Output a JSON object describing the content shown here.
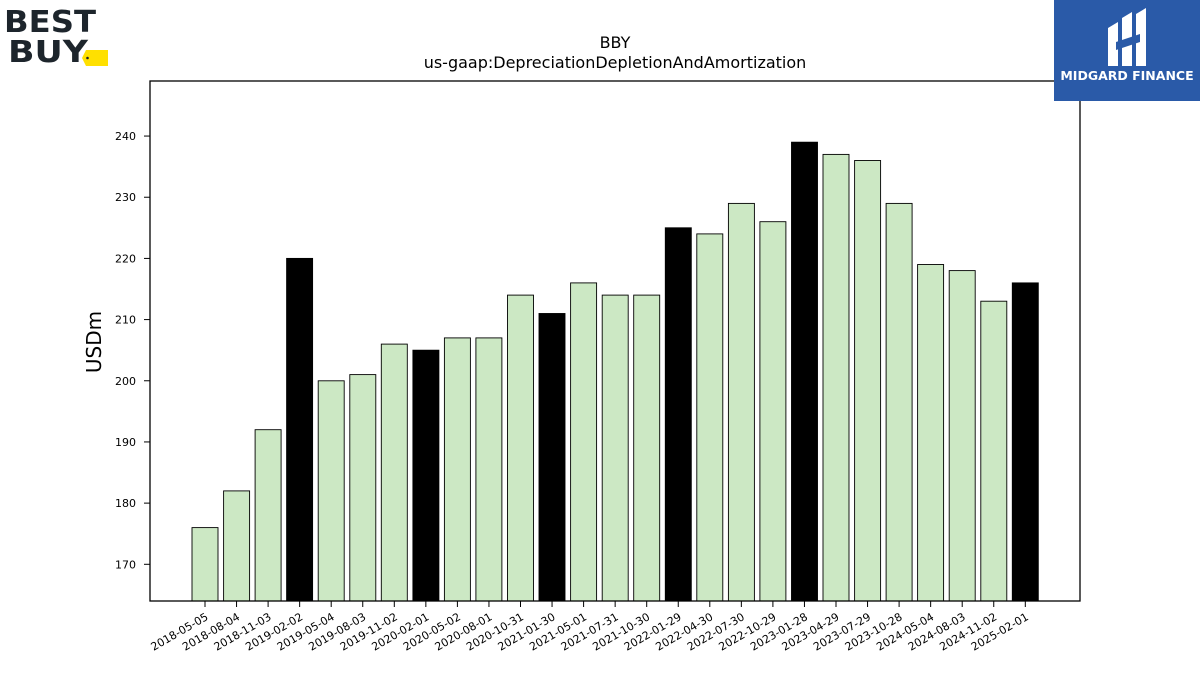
{
  "logos": {
    "left": "BEST BUY",
    "right": "MIDGARD FINANCE"
  },
  "chart_data": {
    "type": "bar",
    "title": "BBY",
    "subtitle": "us-gaap:DepreciationDepletionAndAmortization",
    "xlabel": "",
    "ylabel": "USDm",
    "ylim": [
      164,
      249
    ],
    "yticks": [
      170,
      180,
      190,
      200,
      210,
      220,
      230,
      240
    ],
    "grid": false,
    "colors": {
      "quarter": "#cce8c4",
      "fiscal_year_end": "#000000",
      "edge": "#000000"
    },
    "categories": [
      "2018-05-05",
      "2018-08-04",
      "2018-11-03",
      "2019-02-02",
      "2019-05-04",
      "2019-08-03",
      "2019-11-02",
      "2020-02-01",
      "2020-05-02",
      "2020-08-01",
      "2020-10-31",
      "2021-01-30",
      "2021-05-01",
      "2021-07-31",
      "2021-10-30",
      "2022-01-29",
      "2022-04-30",
      "2022-07-30",
      "2022-10-29",
      "2023-01-28",
      "2023-04-29",
      "2023-07-29",
      "2023-10-28",
      "2024-05-04",
      "2024-08-03",
      "2024-11-02",
      "2025-02-01"
    ],
    "values": [
      176,
      182,
      192,
      220,
      200,
      201,
      206,
      205,
      207,
      207,
      214,
      211,
      216,
      214,
      214,
      225,
      224,
      229,
      226,
      239,
      237,
      236,
      229,
      219,
      218,
      213,
      216
    ],
    "highlight": [
      false,
      false,
      false,
      true,
      false,
      false,
      false,
      true,
      false,
      false,
      false,
      true,
      false,
      false,
      false,
      true,
      false,
      false,
      false,
      true,
      false,
      false,
      false,
      false,
      false,
      false,
      true
    ]
  }
}
